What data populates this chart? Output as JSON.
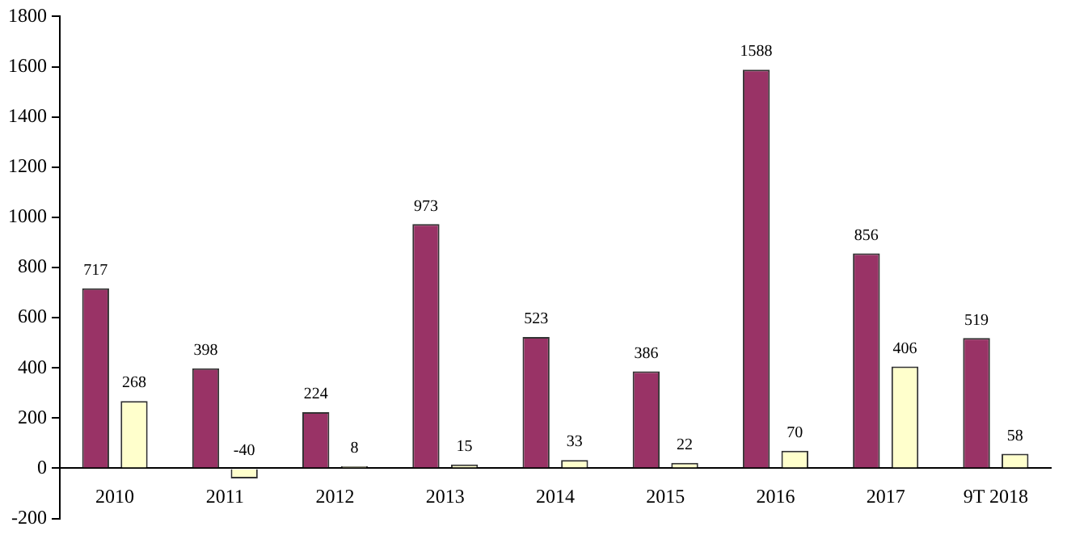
{
  "chart_data": {
    "type": "bar",
    "categories": [
      "2010",
      "2011",
      "2012",
      "2013",
      "2014",
      "2015",
      "2016",
      "2017",
      "9T 2018"
    ],
    "series": [
      {
        "color": "#993366",
        "values": [
          717,
          398,
          224,
          973,
          523,
          386,
          1588,
          856,
          519
        ]
      },
      {
        "color": "#ffffcc",
        "values": [
          268,
          -40,
          8,
          15,
          33,
          22,
          70,
          406,
          58
        ]
      }
    ],
    "ylim": [
      -200,
      1800
    ],
    "yticks": [
      -200,
      0,
      200,
      400,
      600,
      800,
      1000,
      1200,
      1400,
      1600,
      1800
    ],
    "grid": false,
    "legend": false,
    "data_labels": true
  }
}
